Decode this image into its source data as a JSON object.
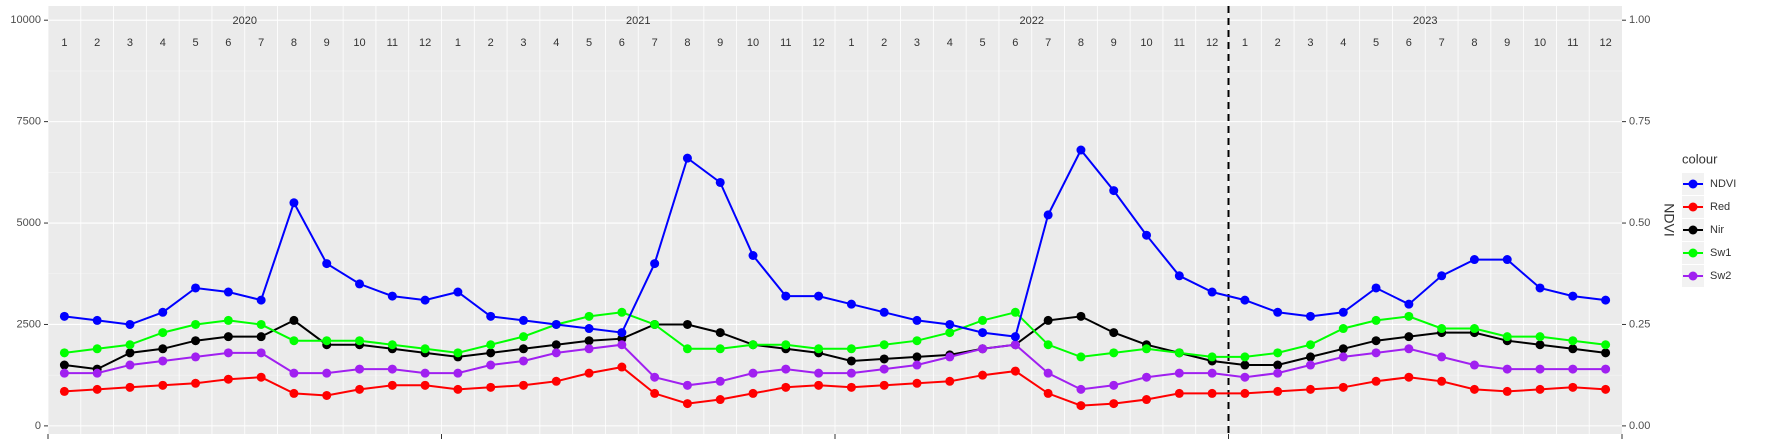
{
  "chart_data": {
    "type": "line",
    "x": [
      "2020-01",
      "2020-02",
      "2020-03",
      "2020-04",
      "2020-05",
      "2020-06",
      "2020-07",
      "2020-08",
      "2020-09",
      "2020-10",
      "2020-11",
      "2020-12",
      "2021-01",
      "2021-02",
      "2021-03",
      "2021-04",
      "2021-05",
      "2021-06",
      "2021-07",
      "2021-08",
      "2021-09",
      "2021-10",
      "2021-11",
      "2021-12",
      "2022-01",
      "2022-02",
      "2022-03",
      "2022-04",
      "2022-05",
      "2022-06",
      "2022-07",
      "2022-08",
      "2022-09",
      "2022-10",
      "2022-11",
      "2022-12",
      "2023-01",
      "2023-02",
      "2023-03",
      "2023-04",
      "2023-05",
      "2023-06",
      "2023-07",
      "2023-08",
      "2023-09",
      "2023-10",
      "2023-11",
      "2023-12"
    ],
    "years": [
      "2020",
      "2021",
      "2022",
      "2023"
    ],
    "months": [
      "1",
      "2",
      "3",
      "4",
      "5",
      "6",
      "7",
      "8",
      "9",
      "10",
      "11",
      "12"
    ],
    "vline": "2023-01",
    "y2_label": "NDVI",
    "legend_title": "colour",
    "legend": "right",
    "grid": true,
    "ylim": [
      -200,
      10350
    ],
    "yticks": [
      0,
      2500,
      5000,
      7500,
      10000
    ],
    "y2lim": [
      -0.02,
      1.035
    ],
    "y2ticks": [
      {
        "value": 0,
        "label": "0.00"
      },
      {
        "value": 0.25,
        "label": "0.25"
      },
      {
        "value": 0.5,
        "label": "0.50"
      },
      {
        "value": 0.75,
        "label": "0.75"
      },
      {
        "value": 1,
        "label": "1.00"
      }
    ],
    "series": [
      {
        "name": "NDVI",
        "color": "#0000ff",
        "axis": "y2",
        "values": [
          0.27,
          0.26,
          0.25,
          0.28,
          0.34,
          0.33,
          0.31,
          0.55,
          0.4,
          0.35,
          0.32,
          0.31,
          0.33,
          0.27,
          0.26,
          0.25,
          0.24,
          0.23,
          0.4,
          0.66,
          0.6,
          0.42,
          0.32,
          0.32,
          0.3,
          0.28,
          0.26,
          0.25,
          0.23,
          0.22,
          0.52,
          0.68,
          0.58,
          0.47,
          0.37,
          0.33,
          0.31,
          0.28,
          0.27,
          0.28,
          0.34,
          0.3,
          0.37,
          0.41,
          0.41,
          0.34,
          0.32,
          0.31
        ]
      },
      {
        "name": "Red",
        "color": "#ff0000",
        "values": [
          850,
          900,
          950,
          1000,
          1050,
          1150,
          1200,
          800,
          750,
          900,
          1000,
          1000,
          900,
          950,
          1000,
          1100,
          1300,
          1450,
          800,
          550,
          650,
          800,
          950,
          1000,
          950,
          1000,
          1050,
          1100,
          1250,
          1350,
          800,
          500,
          550,
          650,
          800,
          800,
          800,
          850,
          900,
          950,
          1100,
          1200,
          1100,
          900,
          850,
          900,
          950,
          900
        ]
      },
      {
        "name": "Nir",
        "color": "#000000",
        "values": [
          1500,
          1400,
          1800,
          1900,
          2100,
          2200,
          2200,
          2600,
          2000,
          2000,
          1900,
          1800,
          1700,
          1800,
          1900,
          2000,
          2100,
          2150,
          2500,
          2500,
          2300,
          2000,
          1900,
          1800,
          1600,
          1650,
          1700,
          1750,
          1900,
          2000,
          2600,
          2700,
          2300,
          2000,
          1800,
          1600,
          1500,
          1500,
          1700,
          1900,
          2100,
          2200,
          2300,
          2300,
          2100,
          2000,
          1900,
          1800
        ]
      },
      {
        "name": "Sw1",
        "color": "#00ff00",
        "values": [
          1800,
          1900,
          2000,
          2300,
          2500,
          2600,
          2500,
          2100,
          2100,
          2100,
          2000,
          1900,
          1800,
          2000,
          2200,
          2500,
          2700,
          2800,
          2500,
          1900,
          1900,
          2000,
          2000,
          1900,
          1900,
          2000,
          2100,
          2300,
          2600,
          2800,
          2000,
          1700,
          1800,
          1900,
          1800,
          1700,
          1700,
          1800,
          2000,
          2400,
          2600,
          2700,
          2400,
          2400,
          2200,
          2200,
          2100,
          2000
        ]
      },
      {
        "name": "Sw2",
        "color": "#a020f0",
        "values": [
          1300,
          1300,
          1500,
          1600,
          1700,
          1800,
          1800,
          1300,
          1300,
          1400,
          1400,
          1300,
          1300,
          1500,
          1600,
          1800,
          1900,
          2000,
          1200,
          1000,
          1100,
          1300,
          1400,
          1300,
          1300,
          1400,
          1500,
          1700,
          1900,
          2000,
          1300,
          900,
          1000,
          1200,
          1300,
          1300,
          1200,
          1300,
          1500,
          1700,
          1800,
          1900,
          1700,
          1500,
          1400,
          1400,
          1400,
          1400
        ]
      }
    ]
  }
}
